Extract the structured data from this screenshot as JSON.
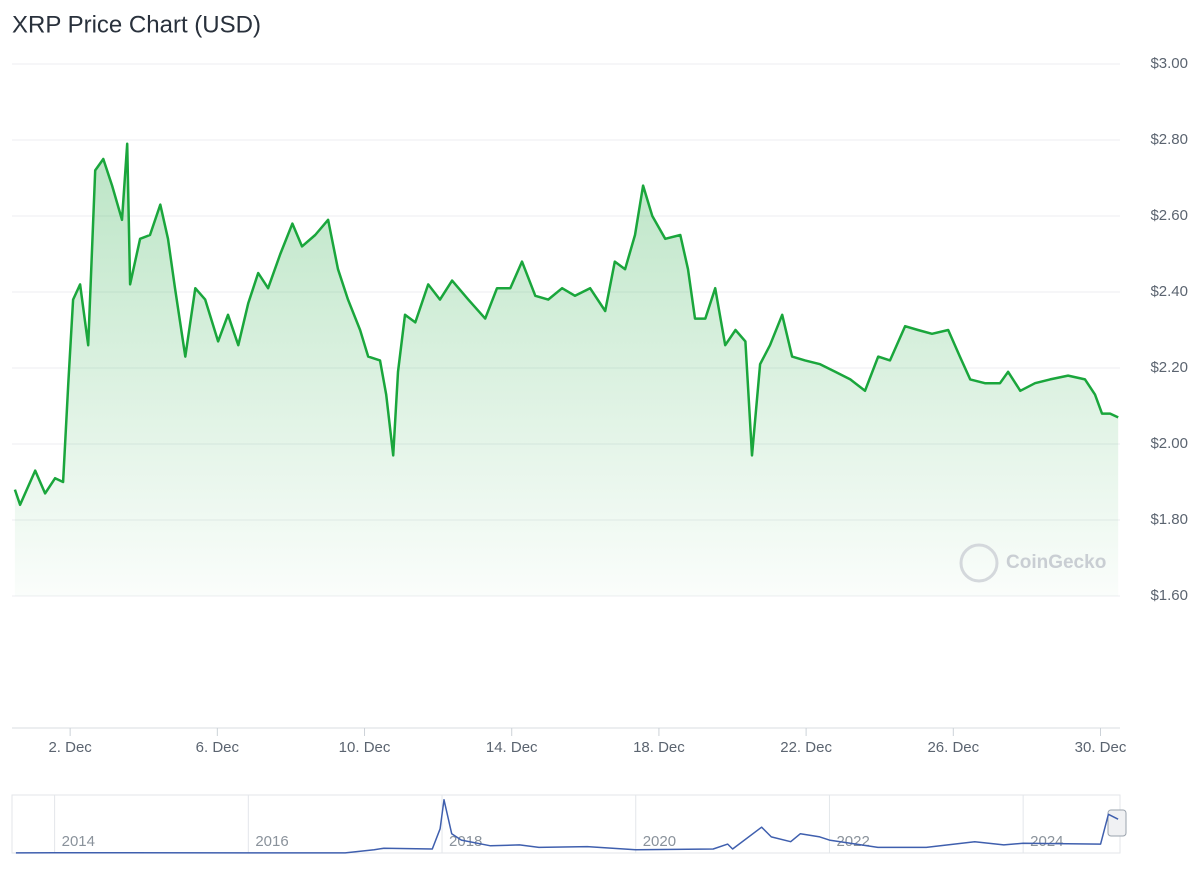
{
  "chart_data": [
    {
      "type": "line",
      "title": "XRP Price Chart (USD)",
      "watermark": "CoinGecko",
      "color": "#1aa63c",
      "area": true,
      "grid": true,
      "x": [
        0.5,
        0.64,
        1.05,
        1.32,
        1.59,
        1.81,
        1.95,
        2.08,
        2.27,
        2.49,
        2.68,
        2.9,
        3.14,
        3.41,
        3.55,
        3.63,
        3.9,
        4.17,
        4.45,
        4.66,
        4.85,
        5.13,
        5.4,
        5.67,
        6.02,
        6.29,
        6.57,
        6.84,
        7.11,
        7.38,
        7.71,
        8.04,
        8.3,
        8.66,
        9.01,
        9.28,
        9.55,
        9.88,
        10.1,
        10.42,
        10.59,
        10.78,
        10.91,
        11.1,
        11.38,
        11.73,
        12.05,
        12.38,
        12.82,
        13.28,
        13.6,
        13.96,
        14.28,
        14.64,
        14.99,
        15.37,
        15.72,
        16.13,
        16.54,
        16.8,
        17.08,
        17.35,
        17.57,
        17.82,
        18.17,
        18.58,
        18.79,
        18.98,
        19.26,
        19.53,
        19.8,
        20.08,
        20.35,
        20.53,
        20.75,
        21.02,
        21.35,
        21.62,
        21.97,
        22.38,
        22.79,
        23.2,
        23.6,
        23.96,
        24.28,
        24.69,
        25.04,
        25.42,
        25.86,
        26.18,
        26.46,
        26.86,
        27.27,
        27.49,
        27.82,
        28.22,
        28.63,
        29.12,
        29.58,
        29.85,
        30.04,
        30.26,
        30.48
      ],
      "values": [
        1.88,
        1.84,
        1.93,
        1.87,
        1.91,
        1.9,
        2.16,
        2.38,
        2.42,
        2.26,
        2.72,
        2.75,
        2.68,
        2.59,
        2.79,
        2.42,
        2.54,
        2.55,
        2.63,
        2.54,
        2.41,
        2.23,
        2.41,
        2.38,
        2.27,
        2.34,
        2.26,
        2.37,
        2.45,
        2.41,
        2.5,
        2.58,
        2.52,
        2.55,
        2.59,
        2.46,
        2.38,
        2.3,
        2.23,
        2.22,
        2.13,
        1.97,
        2.19,
        2.34,
        2.32,
        2.42,
        2.38,
        2.43,
        2.38,
        2.33,
        2.41,
        2.41,
        2.48,
        2.39,
        2.38,
        2.41,
        2.39,
        2.41,
        2.35,
        2.48,
        2.46,
        2.55,
        2.68,
        2.6,
        2.54,
        2.55,
        2.46,
        2.33,
        2.33,
        2.41,
        2.26,
        2.3,
        2.27,
        1.97,
        2.21,
        2.26,
        2.34,
        2.23,
        2.22,
        2.21,
        2.19,
        2.17,
        2.14,
        2.23,
        2.22,
        2.31,
        2.3,
        2.29,
        2.3,
        2.23,
        2.17,
        2.16,
        2.16,
        2.19,
        2.14,
        2.16,
        2.17,
        2.18,
        2.17,
        2.13,
        2.08,
        2.08,
        2.07
      ],
      "xlim": [
        0.42,
        30.53
      ],
      "xticks": [
        {
          "value": 2,
          "label": "2. Dec"
        },
        {
          "value": 6,
          "label": "6. Dec"
        },
        {
          "value": 10,
          "label": "10. Dec"
        },
        {
          "value": 14,
          "label": "14. Dec"
        },
        {
          "value": 18,
          "label": "18. Dec"
        },
        {
          "value": 22,
          "label": "22. Dec"
        },
        {
          "value": 26,
          "label": "26. Dec"
        },
        {
          "value": 30,
          "label": "30. Dec"
        }
      ],
      "ylim": [
        1.6,
        3.0
      ],
      "yticks": [
        {
          "value": 1.6,
          "label": "$1.60"
        },
        {
          "value": 1.8,
          "label": "$1.80"
        },
        {
          "value": 2.0,
          "label": "$2.00"
        },
        {
          "value": 2.2,
          "label": "$2.20"
        },
        {
          "value": 2.4,
          "label": "$2.40"
        },
        {
          "value": 2.6,
          "label": "$2.60"
        },
        {
          "value": 2.8,
          "label": "$2.80"
        },
        {
          "value": 3.0,
          "label": "$3.00"
        }
      ]
    },
    {
      "type": "line",
      "color": "#3f5fae",
      "area": false,
      "grid": true,
      "x": [
        2013.6,
        2014,
        2016,
        2017,
        2017.3,
        2017.4,
        2017.9,
        2017.98,
        2018.02,
        2018.1,
        2018.2,
        2018.5,
        2018.8,
        2019,
        2019.5,
        2020,
        2020.8,
        2020.95,
        2021,
        2021.3,
        2021.4,
        2021.6,
        2021.7,
        2021.9,
        2022,
        2022.5,
        2023,
        2023.5,
        2023.8,
        2024,
        2024.8,
        2024.88,
        2024.98
      ],
      "values": [
        0.005,
        0.02,
        0.006,
        0.006,
        0.2,
        0.3,
        0.25,
        1.5,
        3.3,
        1.2,
        0.8,
        0.45,
        0.5,
        0.35,
        0.4,
        0.2,
        0.25,
        0.55,
        0.25,
        1.6,
        1.0,
        0.7,
        1.2,
        1.0,
        0.8,
        0.35,
        0.35,
        0.7,
        0.5,
        0.6,
        0.55,
        2.4,
        2.1
      ],
      "xlim": [
        2013.56,
        2025
      ],
      "xticks": [
        2014,
        2016,
        2018,
        2020,
        2022,
        2024
      ],
      "ylim": [
        0,
        3.6
      ]
    }
  ]
}
